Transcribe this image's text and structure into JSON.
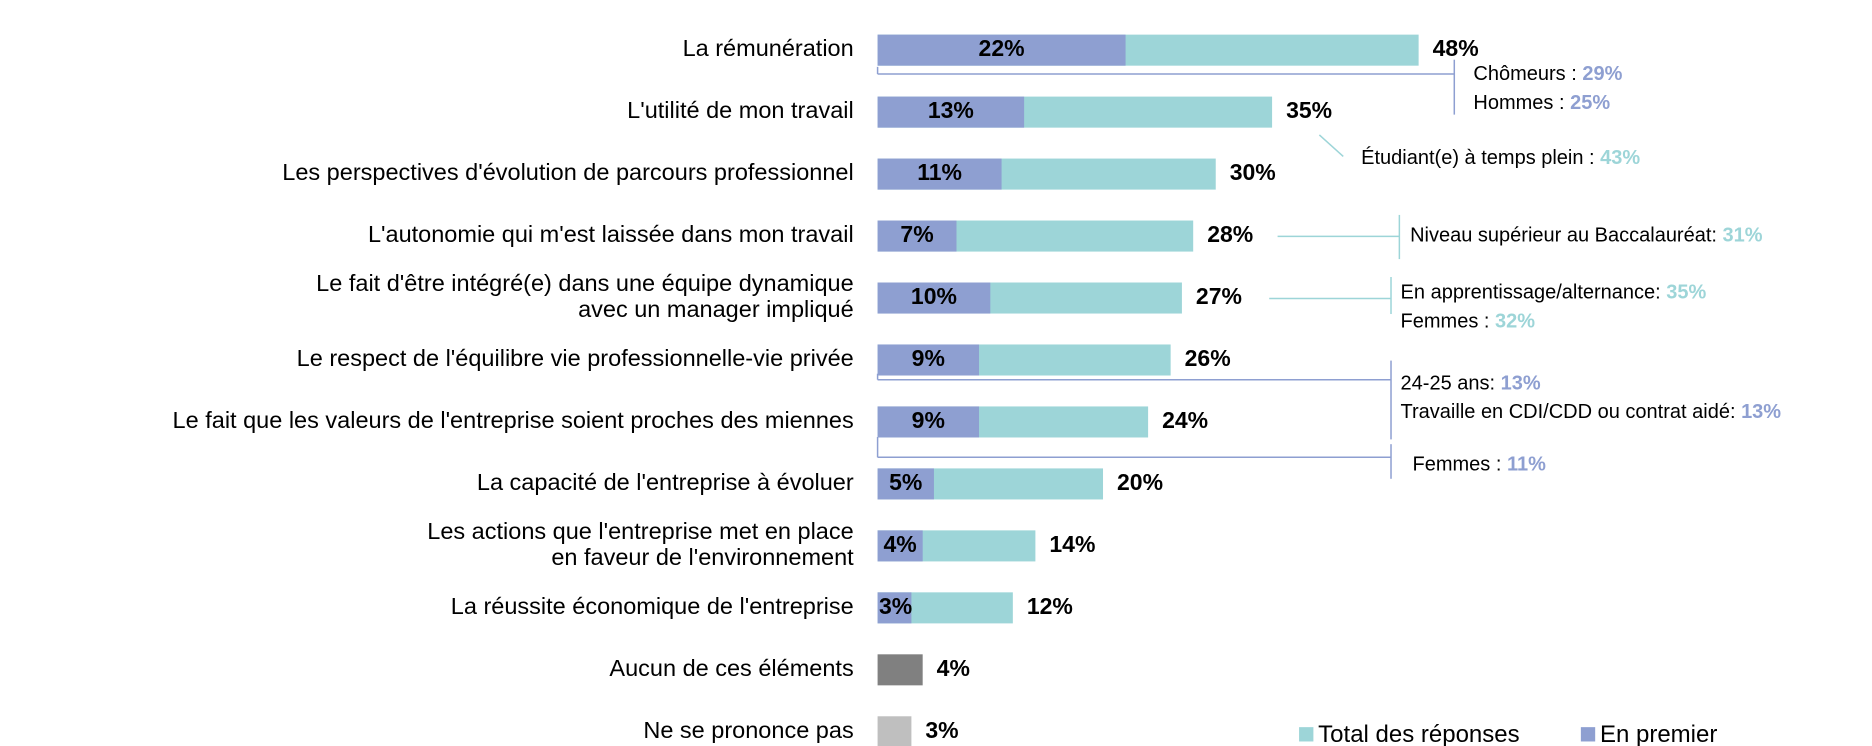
{
  "chart_data": {
    "type": "overlay_bar",
    "categories": [
      [
        "La rémunération"
      ],
      [
        "L'utilité de mon travail"
      ],
      [
        "Les perspectives d'évolution de parcours professionnel"
      ],
      [
        "L'autonomie qui m'est laissée dans mon travail"
      ],
      [
        "Le fait d'être intégré(e) dans une équipe dynamique",
        "avec un manager impliqué"
      ],
      [
        "Le respect de l'équilibre vie professionnelle-vie privée"
      ],
      [
        "Le fait que les valeurs de l'entreprise soient proches des miennes"
      ],
      [
        "La capacité de l'entreprise à évoluer"
      ],
      [
        "Les actions que l'entreprise met en place",
        "en faveur de l'environnement"
      ],
      [
        "La réussite économique de l'entreprise"
      ],
      [
        "Aucun de ces éléments"
      ],
      [
        "Ne se prononce pas"
      ]
    ],
    "series": [
      {
        "name": "Total des réponses",
        "color": "#9dd5d8",
        "colors": [
          "#9dd5d8",
          "#9dd5d8",
          "#9dd5d8",
          "#9dd5d8",
          "#9dd5d8",
          "#9dd5d8",
          "#9dd5d8",
          "#9dd5d8",
          "#9dd5d8",
          "#9dd5d8",
          "#808080",
          "#bfbfbf"
        ],
        "values": [
          48,
          35,
          30,
          28,
          27,
          26,
          24,
          20,
          14,
          12,
          4,
          3
        ],
        "value_labels": [
          "48%",
          "35%",
          "30%",
          "28%",
          "27%",
          "26%",
          "24%",
          "20%",
          "14%",
          "12%",
          "4%",
          "3%"
        ]
      },
      {
        "name": "En premier",
        "color": "#8e9fd1",
        "values": [
          22,
          13,
          11,
          7,
          10,
          9,
          9,
          5,
          4,
          3,
          null,
          null
        ],
        "value_labels": [
          "22%",
          "13%",
          "11%",
          "7%",
          "10%",
          "9%",
          "9%",
          "5%",
          "4%",
          "3%",
          null,
          null
        ]
      }
    ],
    "annotations": [
      {
        "color": "#8e9fd1",
        "lines": [
          {
            "text": "Chômeurs : ",
            "value": "29%"
          },
          {
            "text": "Hommes :  ",
            "value": "25%"
          }
        ]
      },
      {
        "color": "#9dd5d8",
        "lines": [
          {
            "text": "Étudiant(e) à temps plein : ",
            "value": "43%"
          }
        ]
      },
      {
        "color": "#9dd5d8",
        "lines": [
          {
            "text": "Niveau supérieur au Baccalauréat: ",
            "value": "31%"
          }
        ]
      },
      {
        "color": "#9dd5d8",
        "lines": [
          {
            "text": "En apprentissage/alternance: ",
            "value": "35%"
          },
          {
            "text": "Femmes : ",
            "value": "32%"
          }
        ]
      },
      {
        "color": "#8e9fd1",
        "lines": [
          {
            "text": "24-25 ans: ",
            "value": "13%"
          },
          {
            "text": "Travaille en CDI/CDD ou contrat aidé:  ",
            "value": "13%"
          }
        ]
      },
      {
        "color": "#8e9fd1",
        "lines": [
          {
            "text": "Femmes : ",
            "value": "11%"
          }
        ]
      }
    ]
  }
}
